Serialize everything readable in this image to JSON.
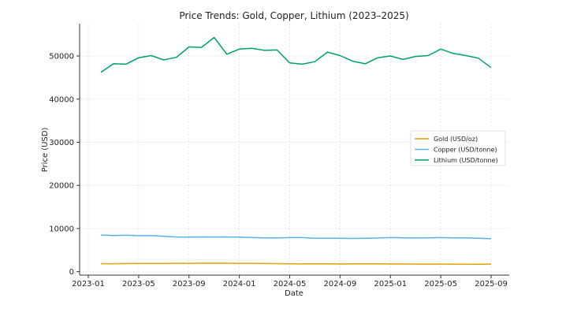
{
  "chart_data": {
    "type": "line",
    "title": "Price Trends: Gold, Copper, Lithium (2023–2025)",
    "xlabel": "Date",
    "ylabel": "Price (USD)",
    "x_tick_labels": [
      "2023-01",
      "2023-05",
      "2023-09",
      "2024-01",
      "2024-05",
      "2024-09",
      "2025-01",
      "2025-05",
      "2025-09"
    ],
    "y_tick_labels": [
      "0",
      "10000",
      "20000",
      "30000",
      "40000",
      "50000"
    ],
    "ylim": [
      -800,
      57500
    ],
    "grid": true,
    "legend_position": "center-right",
    "x": [
      "2023-02",
      "2023-03",
      "2023-04",
      "2023-05",
      "2023-06",
      "2023-07",
      "2023-08",
      "2023-09",
      "2023-10",
      "2023-11",
      "2023-12",
      "2024-01",
      "2024-02",
      "2024-03",
      "2024-04",
      "2024-05",
      "2024-06",
      "2024-07",
      "2024-08",
      "2024-09",
      "2024-10",
      "2024-11",
      "2024-12",
      "2025-01",
      "2025-02",
      "2025-03",
      "2025-04",
      "2025-05",
      "2025-06",
      "2025-07",
      "2025-08",
      "2025-09"
    ],
    "series": [
      {
        "name": "Gold (USD/oz)",
        "color": "#e69f00",
        "values": [
          1850,
          1840,
          1860,
          1900,
          1910,
          1900,
          1950,
          1950,
          1960,
          1960,
          1960,
          1950,
          1940,
          1900,
          1850,
          1830,
          1820,
          1810,
          1790,
          1780,
          1800,
          1800,
          1790,
          1780,
          1780,
          1760,
          1760,
          1750,
          1740,
          1740,
          1720,
          1760
        ]
      },
      {
        "name": "Copper (USD/tonne)",
        "color": "#56b4e9",
        "values": [
          8500,
          8400,
          8450,
          8350,
          8350,
          8200,
          8050,
          8000,
          8050,
          8050,
          8050,
          8000,
          7900,
          7850,
          7800,
          7900,
          7900,
          7750,
          7780,
          7750,
          7700,
          7750,
          7800,
          7900,
          7850,
          7800,
          7850,
          7900,
          7850,
          7850,
          7750,
          7650
        ]
      },
      {
        "name": "Lithium (USD/tonne)",
        "color": "#009e73",
        "values": [
          46200,
          48200,
          48100,
          49600,
          50100,
          49100,
          49700,
          52100,
          52000,
          54300,
          50400,
          51600,
          51800,
          51300,
          51400,
          48400,
          48100,
          48700,
          50900,
          50100,
          48800,
          48200,
          49600,
          50000,
          49200,
          49900,
          50100,
          51600,
          50600,
          50100,
          49500,
          47300
        ]
      }
    ]
  }
}
